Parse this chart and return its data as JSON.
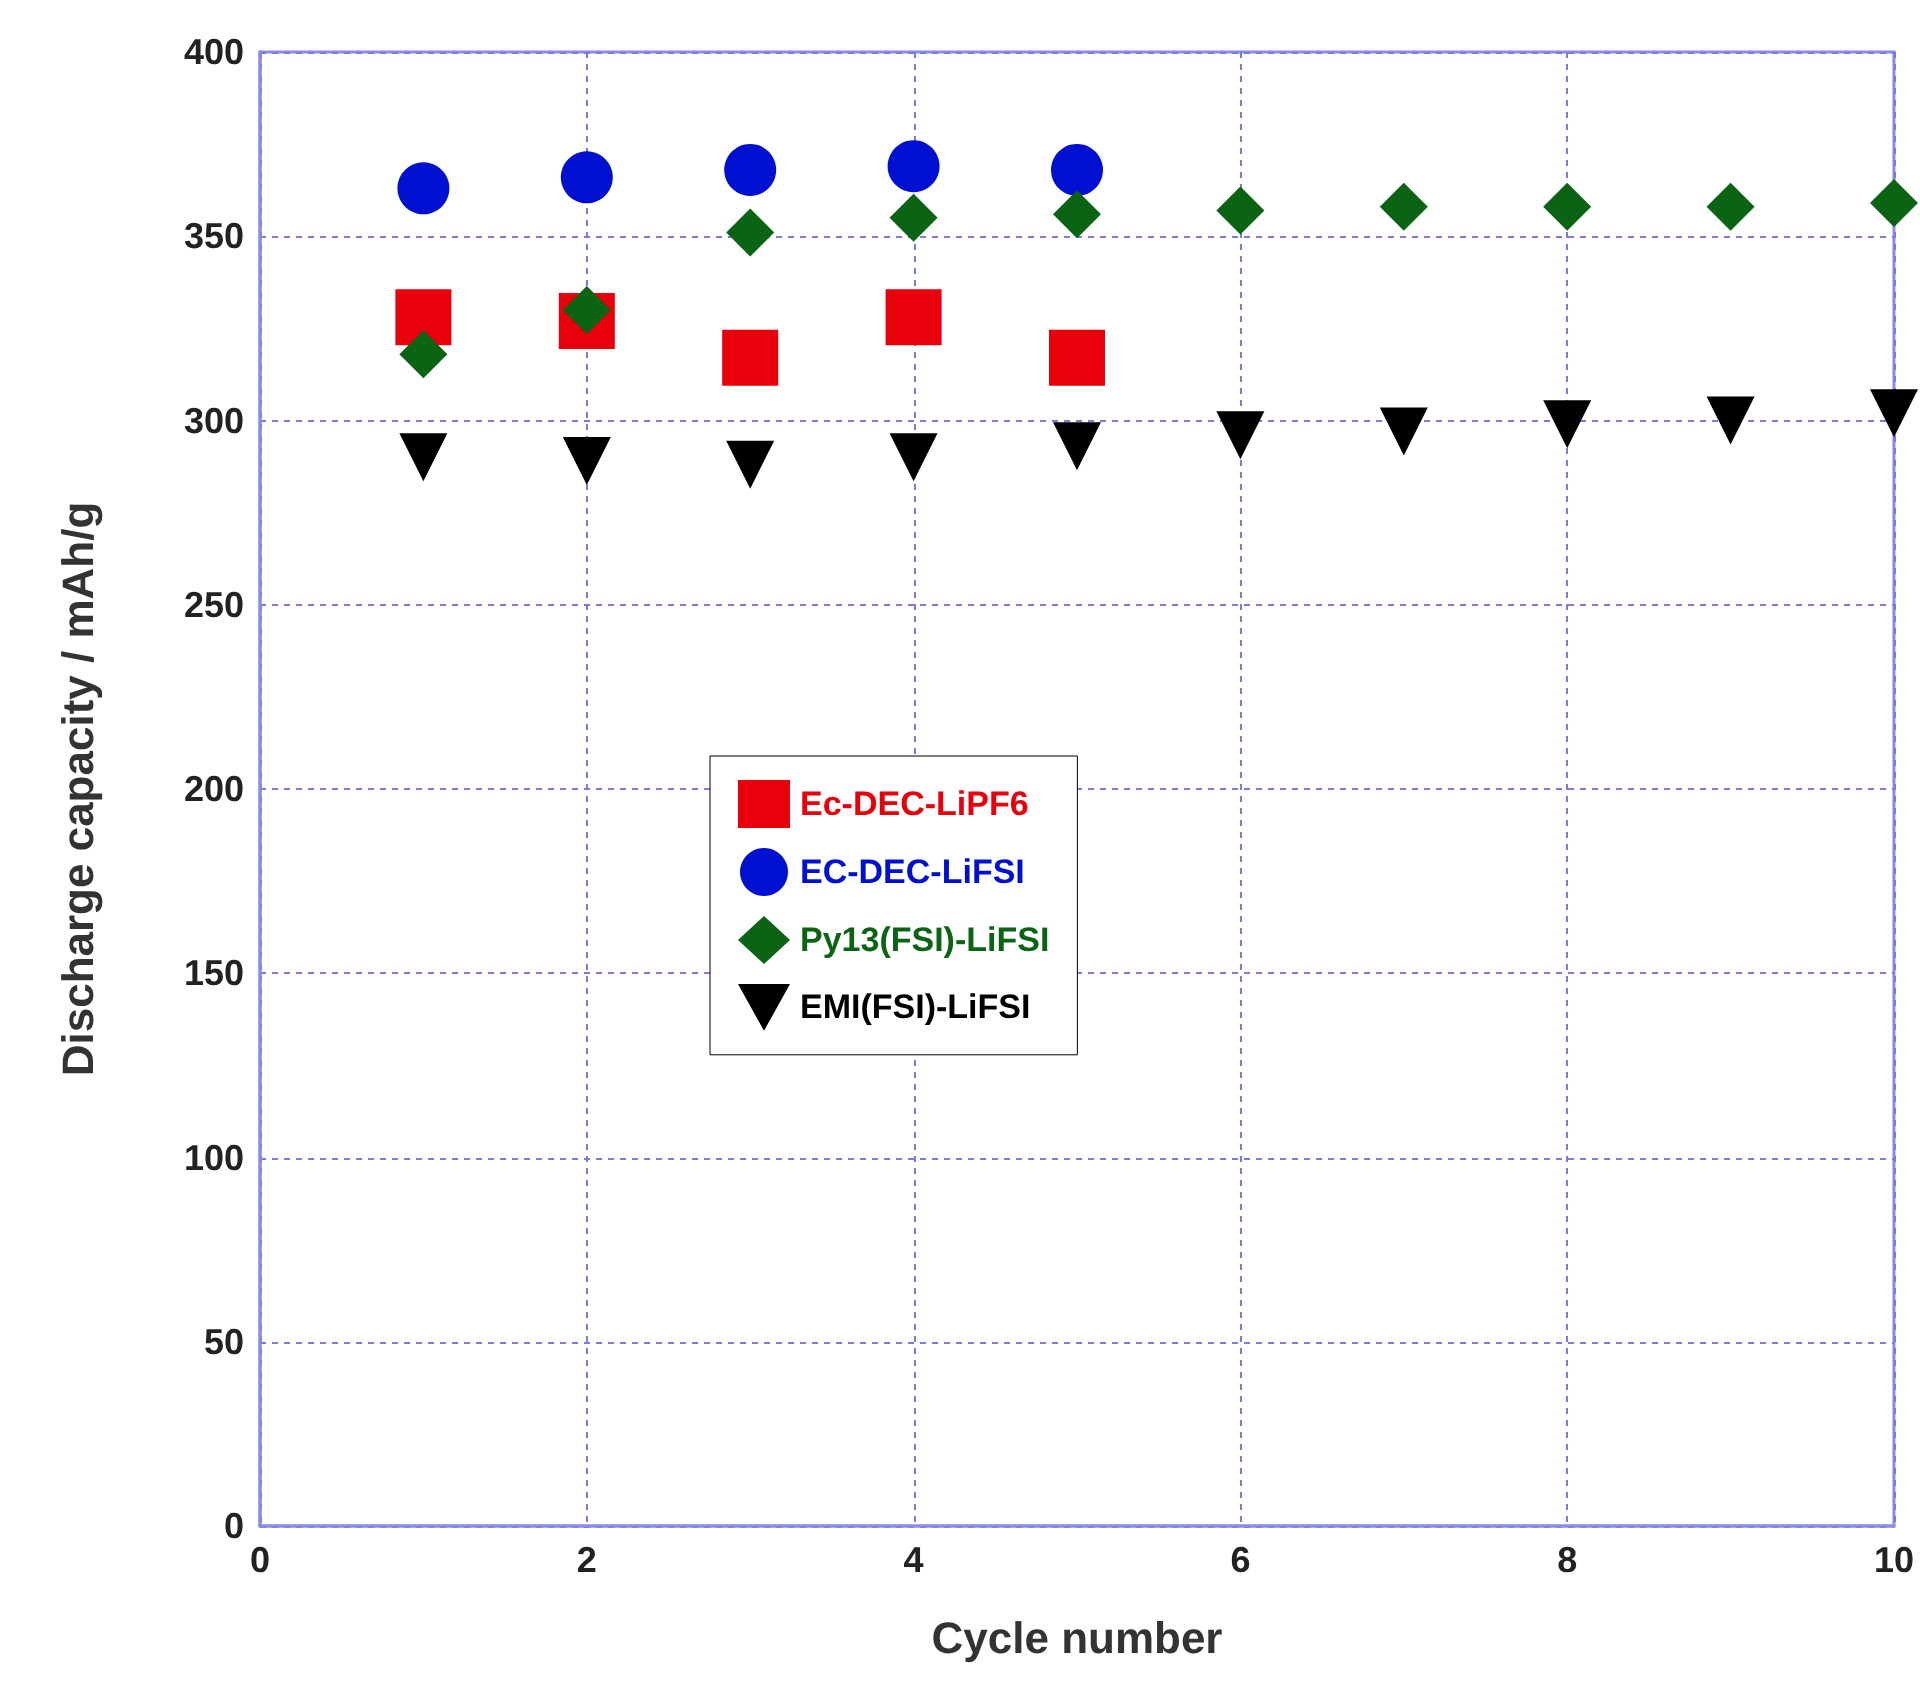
{
  "chart_data": {
    "type": "scatter",
    "xlabel": "Cycle number",
    "ylabel": "Discharge capacity / mAh/g",
    "xlim": [
      0,
      10
    ],
    "xticks": [
      0,
      2,
      4,
      6,
      8,
      10
    ],
    "ylim": [
      0,
      400
    ],
    "yticks": [
      0,
      50,
      100,
      150,
      200,
      250,
      300,
      350,
      400
    ],
    "grid": true,
    "legend": "center left",
    "series": [
      {
        "name": "Ec-DEC-LiPF6",
        "color": "#e8000b",
        "marker": "square",
        "x": [
          1,
          2,
          3,
          4,
          5
        ],
        "values": [
          328,
          327,
          317,
          328,
          317
        ]
      },
      {
        "name": "EC-DEC-LiFSI",
        "color": "#0010d0",
        "marker": "circle",
        "x": [
          1,
          2,
          3,
          4,
          5
        ],
        "values": [
          363,
          366,
          368,
          369,
          368
        ]
      },
      {
        "name": "Py13(FSI)-LiFSI",
        "color": "#0a6414",
        "marker": "diamond",
        "x": [
          1,
          2,
          3,
          4,
          5,
          6,
          7,
          8,
          9,
          10
        ],
        "values": [
          318,
          330,
          351,
          355,
          356,
          357,
          358,
          358,
          358,
          359
        ]
      },
      {
        "name": "EMI(FSI)-LiFSI",
        "color": "#000000",
        "marker": "triangle",
        "x": [
          1,
          2,
          3,
          4,
          5,
          6,
          7,
          8,
          9,
          10
        ],
        "values": [
          290,
          289,
          288,
          290,
          293,
          296,
          297,
          299,
          300,
          302
        ]
      }
    ]
  }
}
